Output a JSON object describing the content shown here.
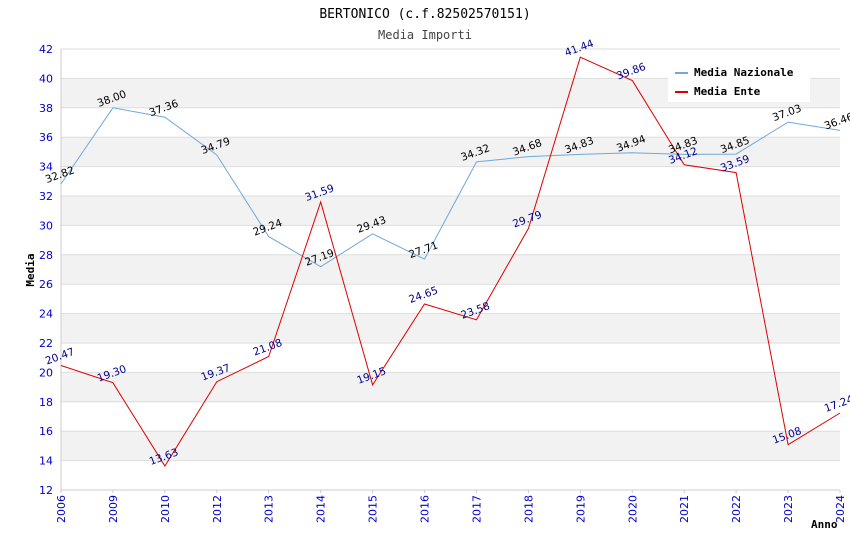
{
  "chart_data": {
    "type": "line",
    "title": "BERTONICO (c.f.82502570151)",
    "subtitle": "Media Importi",
    "xlabel": "Anno",
    "ylabel": "Media",
    "ylim": [
      12,
      42
    ],
    "ytick_step": 2,
    "categories": [
      "2006",
      "2009",
      "2010",
      "2012",
      "2013",
      "2014",
      "2015",
      "2016",
      "2017",
      "2018",
      "2019",
      "2020",
      "2021",
      "2022",
      "2023",
      "2024"
    ],
    "series": [
      {
        "name": "Media Nazionale",
        "color": "#6fa8dc",
        "label_color": "#000000",
        "values": [
          32.82,
          38.0,
          37.36,
          34.79,
          29.24,
          27.19,
          29.43,
          27.71,
          34.32,
          34.68,
          34.83,
          34.94,
          34.83,
          34.85,
          37.03,
          36.46
        ],
        "labels": [
          "32.82",
          "38.00",
          "37.36",
          "34.79",
          "29.24",
          "27.19",
          "29.43",
          "27.71",
          "34.32",
          "34.68",
          "34.83",
          "34.94",
          "34.83",
          "34.85",
          "37.03",
          "36.46"
        ]
      },
      {
        "name": "Media Ente",
        "color": "#dd0000",
        "label_color": "#00008b",
        "values": [
          20.47,
          19.3,
          13.63,
          19.37,
          21.08,
          31.59,
          19.15,
          24.65,
          23.58,
          29.79,
          41.44,
          39.86,
          34.12,
          33.59,
          15.08,
          17.24
        ],
        "labels": [
          "20.47",
          "19.30",
          "13.63",
          "19.37",
          "21.08",
          "31.59",
          "19.15",
          "24.65",
          "23.58",
          "29.79",
          "41.44",
          "39.86",
          "34.12",
          "33.59",
          "15.08",
          "17.24"
        ]
      }
    ],
    "legend_position": "top-right",
    "grid": true
  }
}
